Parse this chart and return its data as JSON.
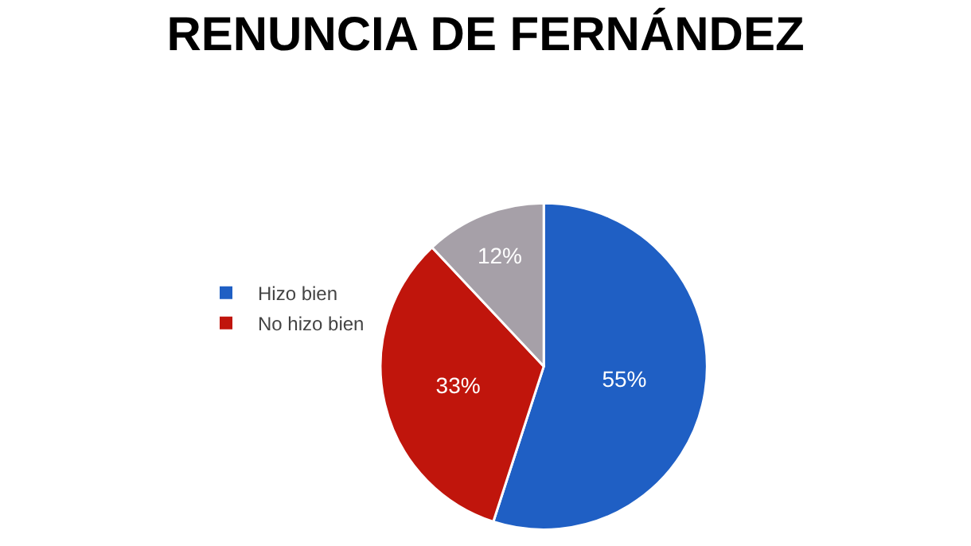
{
  "chart_data": {
    "type": "pie",
    "title": "RENUNCIA DE FERNÁNDEZ",
    "categories": [
      "Hizo bien",
      "No hizo bien",
      null
    ],
    "values": [
      55,
      33,
      12
    ],
    "value_labels": [
      "55%",
      "33%",
      "12%"
    ],
    "colors": [
      "#1f5fc4",
      "#c0150c",
      "#a6a0a8"
    ],
    "legend": "left"
  }
}
